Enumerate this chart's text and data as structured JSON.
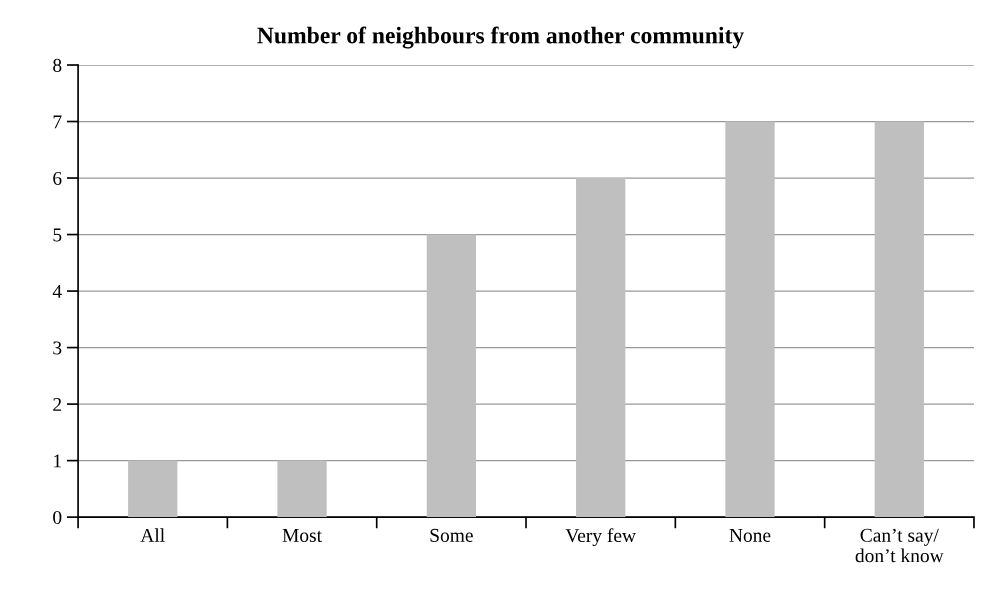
{
  "chart_data": {
    "type": "bar",
    "title": "Number of neighbours from another community",
    "categories": [
      "All",
      "Most",
      "Some",
      "Very few",
      "None",
      "Can’t say/\ndon’t know"
    ],
    "values": [
      1,
      1,
      5,
      6,
      7,
      7
    ],
    "color": "#bfbfbf",
    "ylim": [
      0,
      8
    ],
    "yticks": [
      0,
      1,
      2,
      3,
      4,
      5,
      6,
      7,
      8
    ],
    "grid": "y",
    "legend": false
  }
}
